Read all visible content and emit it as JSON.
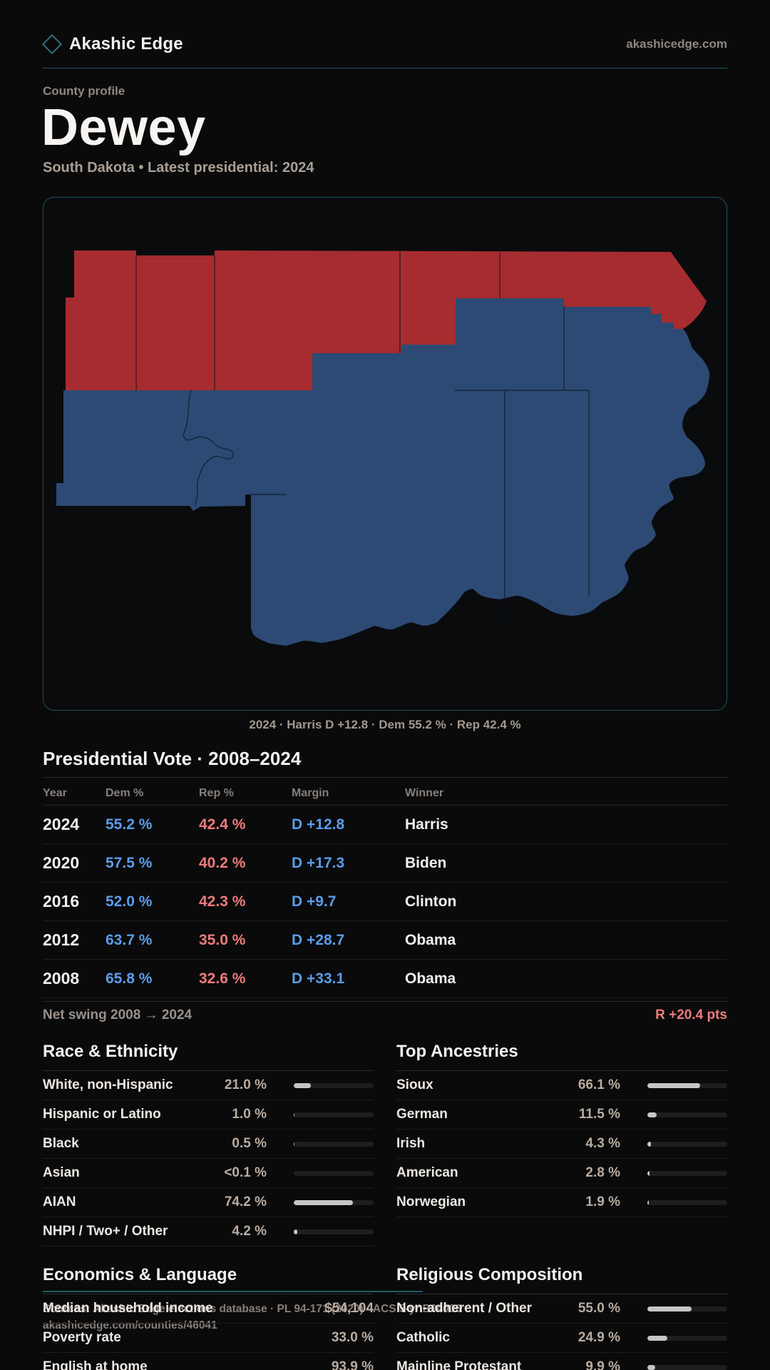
{
  "brand": {
    "name": "Akashic Edge",
    "site": "akashicedge.com",
    "logo_icon": "diamond-icon",
    "accent_teal": "#1c545e"
  },
  "header": {
    "eyebrow": "County profile",
    "title": "Dewey",
    "subtitle": "South Dakota • Latest presidential: 2024"
  },
  "map": {
    "caption": "2024 · Harris D +12.8 · Dem 55.2 % · Rep 42.4 %",
    "dem_fill": "#2c4a73",
    "rep_fill": "#a62c30",
    "border_color": "#1d525c"
  },
  "vote_table": {
    "title": "Presidential Vote · 2008–2024",
    "columns": [
      "Year",
      "Dem %",
      "Rep %",
      "Margin",
      "Winner"
    ],
    "rows": [
      {
        "year": "2024",
        "dem": "55.2 %",
        "rep": "42.4 %",
        "margin": "D +12.8",
        "winner": "Harris"
      },
      {
        "year": "2020",
        "dem": "57.5 %",
        "rep": "40.2 %",
        "margin": "D +17.3",
        "winner": "Biden"
      },
      {
        "year": "2016",
        "dem": "52.0 %",
        "rep": "42.3 %",
        "margin": "D +9.7",
        "winner": "Clinton"
      },
      {
        "year": "2012",
        "dem": "63.7 %",
        "rep": "35.0 %",
        "margin": "D +28.7",
        "winner": "Obama"
      },
      {
        "year": "2008",
        "dem": "65.8 %",
        "rep": "32.6 %",
        "margin": "D +33.1",
        "winner": "Obama"
      }
    ],
    "net_swing_label": "Net swing 2008 → 2024",
    "net_swing_value": "R +20.4 pts",
    "dem_color": "#5b9ce8",
    "rep_color": "#ef7b7b"
  },
  "chart_data": [
    {
      "type": "bar",
      "title": "Race & Ethnicity",
      "categories": [
        "White, non-Hispanic",
        "Hispanic or Latino",
        "Black",
        "Asian",
        "AIAN",
        "NHPI / Two+ / Other"
      ],
      "values": [
        21.0,
        1.0,
        0.5,
        0.05,
        74.2,
        4.2
      ]
    },
    {
      "type": "bar",
      "title": "Top Ancestries",
      "categories": [
        "Sioux",
        "German",
        "Irish",
        "American",
        "Norwegian"
      ],
      "values": [
        66.1,
        11.5,
        4.3,
        2.8,
        1.9
      ]
    },
    {
      "type": "bar",
      "title": "Religious Composition",
      "categories": [
        "Non-adherent / Other",
        "Catholic",
        "Mainline Protestant"
      ],
      "values": [
        55.0,
        24.9,
        9.9
      ]
    }
  ],
  "race": {
    "title": "Race & Ethnicity",
    "rows": [
      {
        "label": "White, non-Hispanic",
        "value": "21.0 %",
        "pct": 21.0
      },
      {
        "label": "Hispanic or Latino",
        "value": "1.0 %",
        "pct": 1.0
      },
      {
        "label": "Black",
        "value": "0.5 %",
        "pct": 0.5
      },
      {
        "label": "Asian",
        "value": "<0.1 %",
        "pct": 0.05
      },
      {
        "label": "AIAN",
        "value": "74.2 %",
        "pct": 74.2
      },
      {
        "label": "NHPI / Two+ / Other",
        "value": "4.2 %",
        "pct": 4.2
      }
    ]
  },
  "ancestries": {
    "title": "Top Ancestries",
    "rows": [
      {
        "label": "Sioux",
        "value": "66.1 %",
        "pct": 66.1
      },
      {
        "label": "German",
        "value": "11.5 %",
        "pct": 11.5
      },
      {
        "label": "Irish",
        "value": "4.3 %",
        "pct": 4.3
      },
      {
        "label": "American",
        "value": "2.8 %",
        "pct": 2.8
      },
      {
        "label": "Norwegian",
        "value": "1.9 %",
        "pct": 1.9
      }
    ]
  },
  "economics": {
    "title": "Economics & Language",
    "rows": [
      {
        "label": "Median household income",
        "value": "$54,104"
      },
      {
        "label": "Poverty rate",
        "value": "33.0 %"
      },
      {
        "label": "English at home",
        "value": "93.9 %"
      }
    ]
  },
  "religion": {
    "title": "Religious Composition",
    "rows": [
      {
        "label": "Non-adherent / Other",
        "value": "55.0 %",
        "pct": 55.0
      },
      {
        "label": "Catholic",
        "value": "24.9 %",
        "pct": 24.9
      },
      {
        "label": "Mainline Protestant",
        "value": "9.9 %",
        "pct": 9.9
      }
    ]
  },
  "footer": {
    "line1": "Sources: Akashic Edge elections database · PL 94-171 (2020) · ACS 5-yr B04006",
    "line2": "akashicedge.com/counties/46041"
  }
}
